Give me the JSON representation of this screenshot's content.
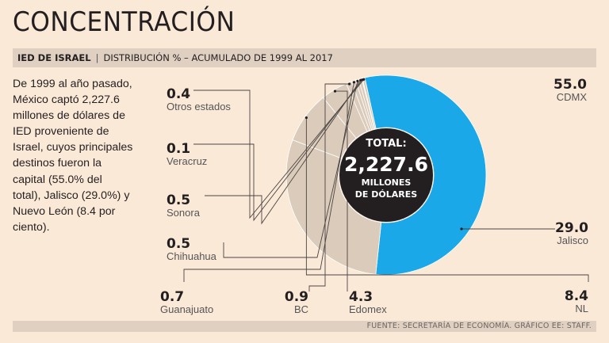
{
  "title": "CONCENTRACIÓN",
  "subtitle": {
    "bold": "IED DE ISRAEL",
    "separator": "|",
    "rest": "Distribución % – acumulado de 1999 al 2017"
  },
  "body_text": "De 1999 al año pasado, México captó 2,227.6 millones de dólares de IED proveniente de Israel, cuyos principales destinos fueron la capital (55.0% del total), Jalisco (29.0%) y Nuevo León (8.4 por ciento).",
  "footer": "Fuente: Secretaría de Economía. Gráfico EE: Staff.",
  "chart_data": {
    "type": "pie",
    "variant": "donut",
    "title": "IED de Israel — Distribución %",
    "center_label": {
      "line1": "TOTAL:",
      "value": "2,227.6",
      "line2": "MILLONES",
      "line3": "DE DÓLARES"
    },
    "slices": [
      {
        "label": "CDMX",
        "value": 55.0,
        "display": "55.0",
        "color": "#1aa8e8"
      },
      {
        "label": "Jalisco",
        "value": 29.0,
        "display": "29.0",
        "color": "#dbcbba"
      },
      {
        "label": "NL",
        "value": 8.4,
        "display": "8.4",
        "color": "#dbcbba"
      },
      {
        "label": "Edomex",
        "value": 4.3,
        "display": "4.3",
        "color": "#dbcbba"
      },
      {
        "label": "BC",
        "value": 0.9,
        "display": "0.9",
        "color": "#dbcbba"
      },
      {
        "label": "Guanajuato",
        "value": 0.7,
        "display": "0.7",
        "color": "#dbcbba"
      },
      {
        "label": "Chihuahua",
        "value": 0.5,
        "display": "0.5",
        "color": "#dbcbba"
      },
      {
        "label": "Sonora",
        "value": 0.5,
        "display": "0.5",
        "color": "#dbcbba"
      },
      {
        "label": "Veracruz",
        "value": 0.1,
        "display": "0.1",
        "color": "#dbcbba"
      },
      {
        "label": "Otros estados",
        "value": 0.4,
        "display": "0.4",
        "color": "#dbcbba"
      }
    ],
    "center_color": "#231f20",
    "divider_color": "#ffffff"
  }
}
